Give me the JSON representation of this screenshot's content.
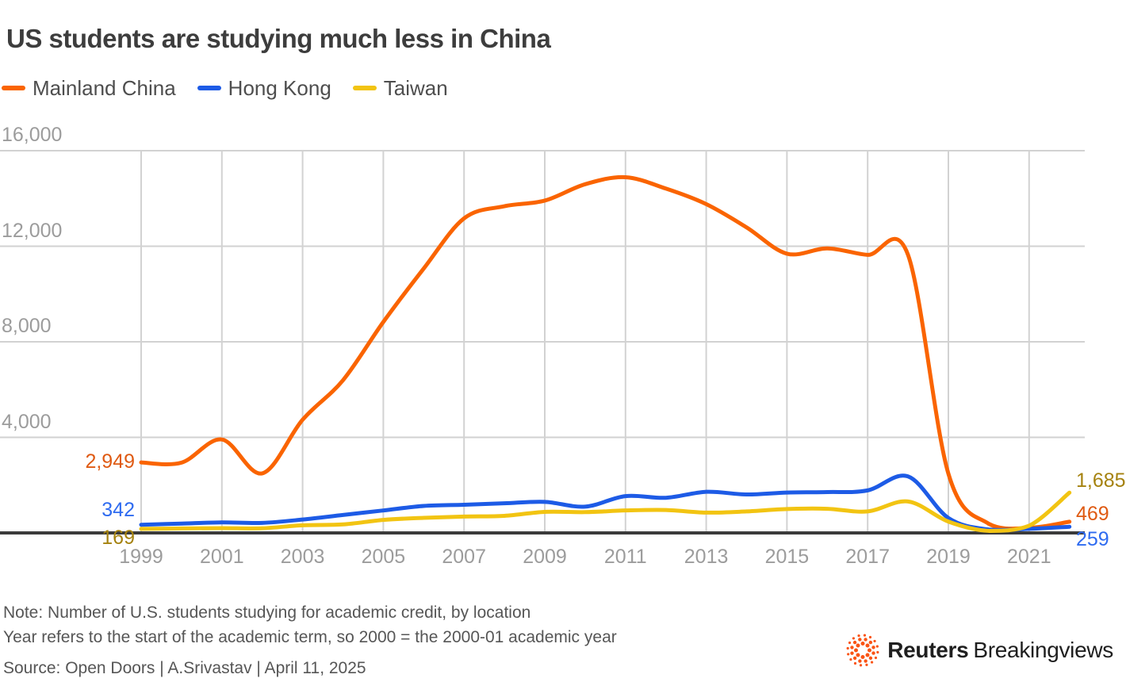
{
  "title": "US students are studying much less in China",
  "legend": {
    "items": [
      {
        "label": "Mainland China",
        "color": "#fa6400"
      },
      {
        "label": "Hong Kong",
        "color": "#1d5be6"
      },
      {
        "label": "Taiwan",
        "color": "#f2c412"
      }
    ]
  },
  "chart_data": {
    "type": "line",
    "title": "US students are studying much less in China",
    "xlabel": "",
    "ylabel": "",
    "ylim": [
      0,
      16000
    ],
    "grid": true,
    "legend_position": "top",
    "x": [
      1999,
      2000,
      2001,
      2002,
      2003,
      2004,
      2005,
      2006,
      2007,
      2008,
      2009,
      2010,
      2011,
      2012,
      2013,
      2014,
      2015,
      2016,
      2017,
      2018,
      2019,
      2020,
      2021,
      2022
    ],
    "series": [
      {
        "name": "Mainland China",
        "color": "#fa6400",
        "label_color": "#df5a12",
        "values": [
          2949,
          2942,
          3911,
          2493,
          4737,
          6389,
          8830,
          11064,
          13165,
          13674,
          13910,
          14596,
          14887,
          14413,
          13763,
          12790,
          11688,
          11910,
          11639,
          11639,
          2481,
          382,
          211,
          469
        ],
        "start_label": "2,949",
        "end_label": "469"
      },
      {
        "name": "Hong Kong",
        "color": "#1d5be6",
        "label_color": "#2e6bf0",
        "values": [
          342,
          390,
          440,
          420,
          560,
          750,
          940,
          1130,
          1180,
          1240,
          1300,
          1100,
          1540,
          1470,
          1720,
          1610,
          1690,
          1710,
          1780,
          2364,
          624,
          140,
          170,
          259
        ],
        "start_label": "342",
        "end_label": "259"
      },
      {
        "name": "Taiwan",
        "color": "#f2c412",
        "label_color": "#a5820f",
        "values": [
          169,
          185,
          200,
          195,
          320,
          355,
          545,
          630,
          685,
          715,
          880,
          870,
          940,
          960,
          850,
          900,
          1000,
          1010,
          900,
          1316,
          474,
          85,
          300,
          1685
        ],
        "start_label": "169",
        "end_label": "1,685"
      }
    ],
    "y_ticks": [
      {
        "label": "16,000",
        "value": 16000
      },
      {
        "label": "12,000",
        "value": 12000
      },
      {
        "label": "8,000",
        "value": 8000
      },
      {
        "label": "4,000",
        "value": 4000
      }
    ],
    "x_ticks": [
      {
        "label": "1999",
        "year": 1999
      },
      {
        "label": "2001",
        "year": 2001
      },
      {
        "label": "2003",
        "year": 2003
      },
      {
        "label": "2005",
        "year": 2005
      },
      {
        "label": "2007",
        "year": 2007
      },
      {
        "label": "2009",
        "year": 2009
      },
      {
        "label": "2011",
        "year": 2011
      },
      {
        "label": "2013",
        "year": 2013
      },
      {
        "label": "2015",
        "year": 2015
      },
      {
        "label": "2017",
        "year": 2017
      },
      {
        "label": "2019",
        "year": 2019
      },
      {
        "label": "2021",
        "year": 2021
      }
    ]
  },
  "notes": {
    "line1": "Note: Number of U.S. students studying for academic credit, by location",
    "line2": "Year refers to the start of the academic term, so 2000 = the 2000-01 academic year",
    "source": "Source: Open Doors | A.Srivastav | April 11, 2025"
  },
  "footer_logo": {
    "brand_bold": "Reuters",
    "brand_regular": "Breakingviews",
    "dot_color": "#fa5415"
  }
}
